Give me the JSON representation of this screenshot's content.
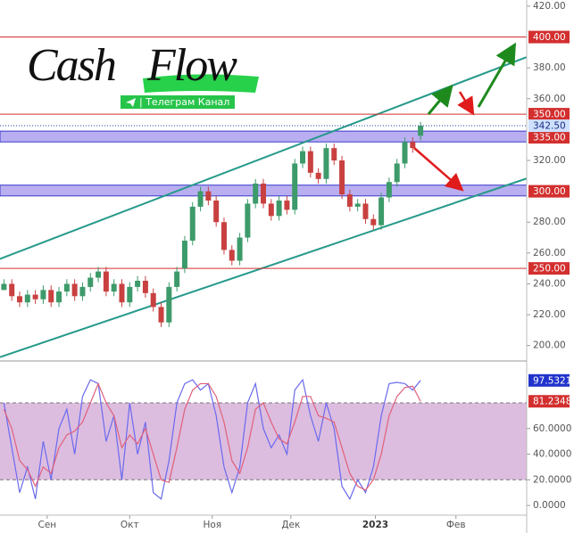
{
  "chart_data": [
    {
      "type": "candlestick",
      "x": [
        1,
        3,
        5,
        7,
        9,
        11,
        13,
        15,
        17,
        19,
        21,
        23,
        25,
        27,
        29,
        31,
        33,
        35,
        37,
        39,
        41,
        43,
        45,
        47,
        49,
        51,
        53,
        55,
        57,
        59,
        61,
        63,
        65,
        67,
        69,
        71,
        73,
        75,
        77,
        79,
        81,
        83,
        85,
        87,
        89,
        91,
        93,
        95,
        97,
        99,
        101,
        103,
        105,
        107
      ],
      "open": [
        236,
        240,
        232,
        228,
        233,
        230,
        236,
        228,
        235,
        240,
        232,
        238,
        244,
        248,
        235,
        240,
        228,
        238,
        242,
        234,
        225,
        215,
        238,
        250,
        268,
        290,
        300,
        294,
        280,
        262,
        255,
        270,
        292,
        305,
        292,
        284,
        294,
        288,
        318,
        326,
        312,
        308,
        328,
        320,
        298,
        290,
        292,
        282,
        278,
        296,
        306,
        318,
        332,
        336
      ],
      "high": [
        243,
        243,
        235,
        236,
        236,
        239,
        239,
        238,
        243,
        243,
        241,
        247,
        251,
        251,
        243,
        243,
        241,
        245,
        245,
        237,
        228,
        241,
        251,
        271,
        293,
        303,
        303,
        297,
        283,
        265,
        273,
        295,
        308,
        308,
        295,
        297,
        297,
        321,
        329,
        329,
        315,
        331,
        331,
        323,
        301,
        295,
        295,
        285,
        299,
        309,
        321,
        335,
        335,
        345
      ],
      "low": [
        237,
        229,
        225,
        225,
        227,
        227,
        225,
        225,
        232,
        229,
        229,
        235,
        241,
        232,
        232,
        225,
        225,
        235,
        231,
        222,
        212,
        212,
        235,
        247,
        265,
        287,
        291,
        277,
        259,
        252,
        252,
        267,
        289,
        289,
        281,
        281,
        285,
        285,
        315,
        309,
        305,
        305,
        317,
        295,
        287,
        287,
        279,
        275,
        275,
        293,
        303,
        315,
        325,
        333
      ],
      "close": [
        240,
        232,
        228,
        233,
        230,
        236,
        228,
        235,
        240,
        232,
        238,
        244,
        248,
        235,
        240,
        228,
        238,
        242,
        234,
        225,
        215,
        238,
        248,
        268,
        290,
        300,
        294,
        280,
        262,
        255,
        270,
        292,
        305,
        292,
        284,
        294,
        288,
        318,
        326,
        312,
        308,
        328,
        320,
        298,
        290,
        292,
        282,
        278,
        296,
        306,
        318,
        332,
        328,
        342.5
      ],
      "up_color": "#3d9a6a",
      "down_color": "#c94040",
      "xlim": [
        0,
        134
      ],
      "ylim": [
        190,
        424
      ],
      "xticks": [
        {
          "value": 12,
          "label": "Сен"
        },
        {
          "value": 33,
          "label": "Окт"
        },
        {
          "value": 54,
          "label": "Ноя"
        },
        {
          "value": 74,
          "label": "Дек"
        },
        {
          "value": 95.5,
          "label": "2023"
        },
        {
          "value": 116,
          "label": "Фев"
        }
      ],
      "yticks": [
        {
          "value": 200,
          "label": "200.00"
        },
        {
          "value": 220,
          "label": "220.00"
        },
        {
          "value": 240,
          "label": "240.00"
        },
        {
          "value": 260,
          "label": "260.00"
        },
        {
          "value": 280,
          "label": "280.00"
        },
        {
          "value": 320,
          "label": "320.00"
        },
        {
          "value": 360,
          "label": "360.00"
        },
        {
          "value": 380,
          "label": "380.00"
        },
        {
          "value": 420,
          "label": "420.00"
        }
      ],
      "levels": [
        {
          "value": 400,
          "label": "400.00"
        },
        {
          "value": 350,
          "label": "350.00"
        },
        {
          "value": 250,
          "label": "250.00"
        }
      ],
      "level_color": "#d32f2f",
      "zones": [
        {
          "value": 335,
          "label": "335.00",
          "range": [
            332,
            339
          ]
        },
        {
          "value": 300,
          "label": "300.00",
          "range": [
            297,
            304
          ]
        }
      ],
      "zone_color": "#b9aef0",
      "last_price": {
        "value": 342.5,
        "label": "342.50"
      },
      "trendlines": [
        {
          "x": [
            0,
            134
          ],
          "y": [
            256.2,
            387
          ]
        },
        {
          "x": [
            0,
            134
          ],
          "y": [
            192.5,
            308.3
          ]
        }
      ],
      "trend_color": "#26998a"
    },
    {
      "type": "stochastic",
      "series": [
        {
          "color": "#6a6aee",
          "values": [
            80,
            45,
            10,
            30,
            5,
            50,
            20,
            60,
            75,
            40,
            85,
            98,
            95,
            50,
            70,
            20,
            80,
            40,
            65,
            10,
            5,
            35,
            80,
            95,
            98,
            90,
            95,
            70,
            30,
            10,
            30,
            80,
            95,
            60,
            45,
            55,
            40,
            90,
            98,
            70,
            50,
            80,
            60,
            15,
            5,
            20,
            10,
            30,
            70,
            95,
            96,
            95,
            90,
            97.5321
          ]
        },
        {
          "color": "#e0607a",
          "values": [
            75,
            60,
            35,
            28,
            15,
            30,
            25,
            45,
            55,
            58,
            65,
            80,
            95,
            80,
            70,
            45,
            55,
            48,
            60,
            40,
            20,
            18,
            45,
            75,
            90,
            95,
            95,
            85,
            65,
            35,
            25,
            45,
            75,
            80,
            65,
            52,
            48,
            65,
            85,
            85,
            70,
            68,
            65,
            45,
            25,
            15,
            12,
            20,
            40,
            70,
            85,
            92,
            93,
            81.2348
          ]
        }
      ],
      "label_colors": [
        "#2233cc",
        "#d32f2f"
      ],
      "ylim": [
        -7.6,
        112.7
      ],
      "yticks": [
        {
          "value": 0,
          "label": "0.0000"
        },
        {
          "value": 20,
          "label": "20.0000"
        },
        {
          "value": 40,
          "label": "40.0000"
        },
        {
          "value": 60,
          "label": "60.0000"
        }
      ],
      "bands": [
        20,
        80
      ],
      "band_color": "#dcbde0"
    }
  ],
  "logo": {
    "word1": "Cash",
    "word2": "Flow",
    "tagline": "| Телеграм Канал"
  }
}
